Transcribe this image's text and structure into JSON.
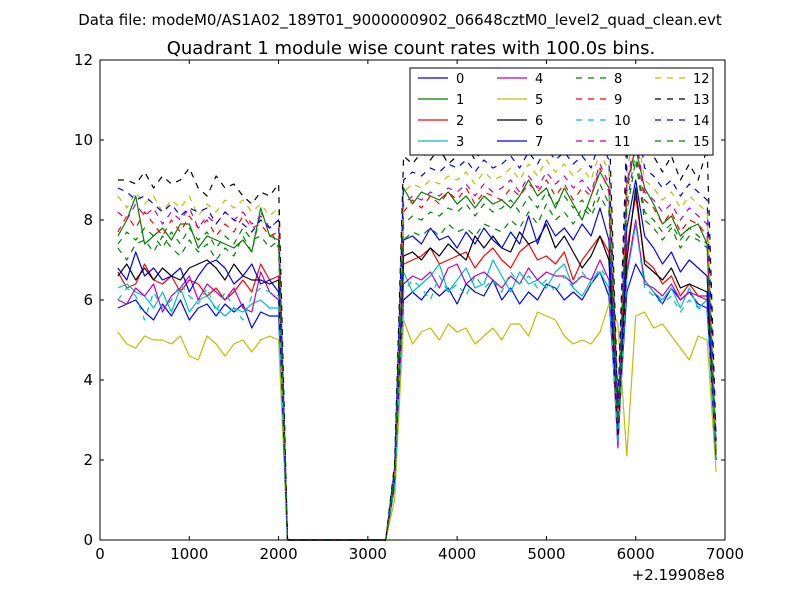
{
  "chart_data": {
    "type": "line",
    "suptitle": "Data file: modeM0/AS1A02_189T01_9000000902_06648cztM0_level2_quad_clean.evt",
    "title": "Quadrant 1 module wise count rates with 100.0s bins.",
    "xlabel": "",
    "ylabel": "",
    "xlim": [
      0,
      7000
    ],
    "ylim": [
      0,
      12
    ],
    "x_offset_label": "+2.19908e8",
    "xticks": [
      0,
      1000,
      2000,
      3000,
      4000,
      5000,
      6000,
      7000
    ],
    "yticks": [
      0,
      2,
      4,
      6,
      8,
      10,
      12
    ],
    "xtick_labels": [
      "0",
      "1000",
      "2000",
      "3000",
      "4000",
      "5000",
      "6000",
      "7000"
    ],
    "ytick_labels": [
      "0",
      "2",
      "4",
      "6",
      "8",
      "10",
      "12"
    ],
    "grid": false,
    "legend_position": "top-right",
    "x": [
      200,
      300,
      400,
      500,
      600,
      700,
      800,
      900,
      1000,
      1100,
      1200,
      1300,
      1400,
      1500,
      1600,
      1700,
      1800,
      1900,
      2000,
      2100,
      2200,
      2300,
      2400,
      2500,
      2600,
      2700,
      2800,
      2900,
      3000,
      3100,
      3200,
      3300,
      3400,
      3500,
      3600,
      3700,
      3800,
      3900,
      4000,
      4100,
      4200,
      4300,
      4400,
      4500,
      4600,
      4700,
      4800,
      4900,
      5000,
      5100,
      5200,
      5300,
      5400,
      5500,
      5600,
      5700,
      5800,
      5900,
      6000,
      6100,
      6200,
      6300,
      6400,
      6500,
      6600,
      6700,
      6800,
      6900
    ],
    "series": [
      {
        "name": "0",
        "color": "#0000ff",
        "dash": "solid",
        "values": [
          5.8,
          5.9,
          6.0,
          5.7,
          5.5,
          5.9,
          5.6,
          6.0,
          5.5,
          5.8,
          5.9,
          5.6,
          5.9,
          5.7,
          5.9,
          5.3,
          5.7,
          5.6,
          5.6,
          0.0,
          0.0,
          0.0,
          0.0,
          0.0,
          0.0,
          0.0,
          0.0,
          0.0,
          0.0,
          0.0,
          0.0,
          1.4,
          6.0,
          6.2,
          6.0,
          6.3,
          6.1,
          6.3,
          5.9,
          6.4,
          6.2,
          6.1,
          6.5,
          6.0,
          6.3,
          5.9,
          6.2,
          6.0,
          6.4,
          6.3,
          6.0,
          6.2,
          6.0,
          6.4,
          6.7,
          6.1,
          2.6,
          6.2,
          6.9,
          6.5,
          6.2,
          5.9,
          6.3,
          6.0,
          6.2,
          5.9,
          5.8,
          2.0
        ]
      },
      {
        "name": "1",
        "color": "#008000",
        "dash": "solid",
        "values": [
          7.6,
          8.0,
          8.6,
          7.4,
          7.6,
          7.8,
          7.5,
          7.9,
          7.9,
          7.3,
          7.6,
          7.5,
          7.4,
          7.3,
          7.5,
          7.2,
          8.3,
          7.6,
          7.5,
          0.0,
          0.0,
          0.0,
          0.0,
          0.0,
          0.0,
          0.0,
          0.0,
          0.0,
          0.0,
          0.0,
          0.0,
          1.5,
          8.8,
          8.4,
          8.7,
          8.6,
          8.5,
          8.7,
          8.4,
          8.6,
          8.3,
          8.6,
          8.4,
          8.5,
          8.3,
          8.6,
          9.0,
          8.6,
          8.8,
          8.3,
          8.8,
          8.4,
          8.0,
          8.6,
          9.2,
          8.8,
          2.9,
          8.9,
          9.8,
          8.8,
          8.4,
          7.9,
          8.1,
          7.6,
          7.8,
          7.9,
          7.4,
          2.0
        ]
      },
      {
        "name": "2",
        "color": "#ff0000",
        "dash": "solid",
        "values": [
          6.7,
          6.3,
          6.4,
          6.9,
          6.5,
          6.4,
          6.6,
          6.2,
          6.5,
          6.4,
          6.1,
          6.3,
          6.0,
          6.2,
          6.5,
          6.2,
          6.9,
          6.5,
          6.6,
          0.0,
          0.0,
          0.0,
          0.0,
          0.0,
          0.0,
          0.0,
          0.0,
          0.0,
          0.0,
          0.0,
          0.0,
          1.4,
          6.9,
          7.0,
          7.1,
          7.3,
          6.9,
          7.0,
          7.1,
          7.2,
          6.8,
          7.1,
          7.3,
          7.0,
          6.8,
          7.2,
          7.4,
          7.0,
          7.1,
          6.9,
          7.2,
          6.5,
          7.0,
          7.3,
          7.6,
          7.2,
          2.5,
          7.3,
          8.6,
          7.0,
          6.8,
          6.4,
          6.6,
          6.1,
          6.4,
          6.1,
          6.0,
          2.2
        ]
      },
      {
        "name": "3",
        "color": "#00bfbf",
        "dash": "solid",
        "values": [
          6.3,
          6.4,
          6.2,
          6.1,
          5.8,
          6.2,
          5.7,
          6.3,
          5.7,
          6.0,
          6.1,
          5.8,
          5.6,
          5.8,
          5.7,
          5.9,
          6.0,
          5.8,
          5.8,
          0.0,
          0.0,
          0.0,
          0.0,
          0.0,
          0.0,
          0.0,
          0.0,
          0.0,
          0.0,
          0.0,
          0.0,
          1.3,
          6.7,
          6.2,
          6.4,
          6.6,
          6.9,
          6.2,
          6.5,
          6.8,
          6.3,
          6.4,
          7.0,
          6.6,
          6.2,
          6.7,
          6.4,
          6.5,
          6.3,
          6.7,
          6.9,
          6.3,
          6.1,
          6.5,
          6.7,
          6.3,
          2.4,
          6.6,
          7.9,
          6.5,
          6.2,
          6.0,
          6.3,
          5.8,
          6.3,
          5.8,
          6.0,
          2.0
        ]
      },
      {
        "name": "4",
        "color": "#bf00bf",
        "dash": "solid",
        "values": [
          6.0,
          5.9,
          6.3,
          6.1,
          6.4,
          5.7,
          6.1,
          6.3,
          6.6,
          6.0,
          6.4,
          6.2,
          6.0,
          6.3,
          5.8,
          5.7,
          6.7,
          6.2,
          6.0,
          0.0,
          0.0,
          0.0,
          0.0,
          0.0,
          0.0,
          0.0,
          0.0,
          0.0,
          0.0,
          0.0,
          0.0,
          1.4,
          6.4,
          6.6,
          6.5,
          6.7,
          6.3,
          6.8,
          6.9,
          6.4,
          6.6,
          6.7,
          6.5,
          6.3,
          6.6,
          6.4,
          6.8,
          6.5,
          6.7,
          6.6,
          6.6,
          6.4,
          6.6,
          6.5,
          7.0,
          6.5,
          2.3,
          6.7,
          8.0,
          6.4,
          6.3,
          6.1,
          6.4,
          6.0,
          6.2,
          6.1,
          6.1,
          2.0
        ]
      },
      {
        "name": "5",
        "color": "#bfbf00",
        "dash": "solid",
        "values": [
          5.2,
          4.9,
          4.8,
          5.1,
          5.0,
          5.0,
          4.9,
          5.1,
          4.6,
          4.5,
          5.1,
          4.9,
          4.6,
          4.9,
          5.0,
          4.7,
          5.0,
          5.1,
          5.0,
          0.0,
          0.0,
          0.0,
          0.0,
          0.0,
          0.0,
          0.0,
          0.0,
          0.0,
          0.0,
          0.0,
          0.0,
          1.0,
          5.5,
          4.9,
          5.2,
          5.3,
          5.0,
          5.4,
          5.2,
          5.3,
          4.9,
          5.1,
          5.3,
          5.0,
          5.4,
          5.4,
          5.1,
          5.7,
          5.6,
          5.5,
          5.1,
          4.9,
          5.0,
          4.9,
          5.2,
          5.9,
          5.4,
          2.1,
          5.6,
          5.7,
          5.3,
          5.4,
          5.1,
          4.8,
          4.5,
          5.1,
          5.0,
          1.7
        ]
      },
      {
        "name": "6",
        "color": "#000000",
        "dash": "solid",
        "values": [
          6.6,
          6.9,
          6.5,
          6.8,
          6.5,
          6.8,
          6.6,
          6.5,
          6.8,
          6.9,
          7.0,
          6.8,
          6.5,
          6.9,
          6.6,
          6.5,
          6.5,
          6.4,
          6.5,
          0.0,
          0.0,
          0.0,
          0.0,
          0.0,
          0.0,
          0.0,
          0.0,
          0.0,
          0.0,
          0.0,
          0.0,
          1.5,
          7.1,
          7.2,
          7.0,
          7.3,
          7.1,
          7.4,
          7.2,
          7.0,
          7.6,
          7.3,
          7.6,
          7.3,
          7.2,
          7.7,
          7.4,
          7.5,
          7.9,
          7.3,
          7.6,
          7.2,
          6.8,
          7.1,
          7.6,
          7.0,
          2.6,
          7.0,
          8.8,
          6.9,
          6.7,
          6.5,
          6.8,
          6.3,
          6.4,
          6.3,
          6.2,
          2.0
        ]
      },
      {
        "name": "7",
        "color": "#0000ff",
        "dash": "solid",
        "values": [
          6.8,
          6.5,
          7.2,
          6.6,
          6.8,
          6.5,
          6.6,
          6.8,
          6.2,
          6.6,
          6.9,
          7.0,
          6.8,
          6.4,
          6.6,
          6.9,
          6.4,
          6.5,
          6.2,
          0.0,
          0.0,
          0.0,
          0.0,
          0.0,
          0.0,
          0.0,
          0.0,
          0.0,
          0.0,
          0.0,
          0.0,
          1.5,
          7.5,
          7.6,
          7.4,
          7.8,
          7.5,
          7.6,
          7.3,
          7.7,
          7.4,
          7.8,
          7.5,
          7.3,
          7.7,
          7.4,
          8.1,
          7.4,
          8.0,
          7.6,
          7.8,
          7.5,
          7.9,
          7.6,
          8.3,
          7.5,
          2.8,
          7.8,
          9.0,
          7.6,
          7.3,
          6.9,
          7.2,
          6.7,
          7.0,
          6.8,
          6.6,
          2.0
        ]
      },
      {
        "name": "8",
        "color": "#008000",
        "dash": "dashed",
        "values": [
          7.3,
          7.0,
          7.4,
          7.5,
          7.2,
          7.6,
          7.3,
          7.1,
          7.5,
          7.2,
          7.4,
          7.0,
          7.3,
          7.1,
          7.6,
          7.2,
          8.2,
          7.8,
          7.3,
          0.0,
          0.0,
          0.0,
          0.0,
          0.0,
          0.0,
          0.0,
          0.0,
          0.0,
          0.0,
          0.0,
          0.0,
          1.6,
          7.5,
          7.7,
          7.6,
          7.8,
          7.6,
          7.9,
          7.7,
          7.8,
          7.6,
          7.9,
          7.8,
          7.7,
          8.0,
          7.8,
          8.2,
          7.9,
          8.4,
          8.0,
          8.2,
          7.9,
          8.3,
          8.1,
          8.6,
          8.2,
          2.9,
          8.2,
          9.5,
          8.0,
          7.8,
          7.5,
          7.8,
          7.3,
          7.6,
          7.5,
          7.3,
          2.1
        ]
      },
      {
        "name": "9",
        "color": "#ff0000",
        "dash": "dashed",
        "values": [
          7.7,
          8.1,
          7.8,
          8.2,
          7.9,
          7.6,
          8.0,
          7.7,
          8.1,
          7.8,
          8.0,
          7.6,
          7.9,
          7.7,
          8.1,
          7.8,
          7.9,
          7.6,
          7.7,
          0.0,
          0.0,
          0.0,
          0.0,
          0.0,
          0.0,
          0.0,
          0.0,
          0.0,
          0.0,
          0.0,
          0.0,
          1.7,
          8.2,
          8.5,
          8.3,
          8.6,
          8.4,
          8.7,
          8.5,
          8.8,
          8.4,
          8.7,
          8.6,
          8.5,
          8.8,
          8.6,
          8.9,
          8.7,
          9.0,
          8.6,
          8.9,
          8.5,
          8.8,
          8.6,
          9.3,
          8.7,
          3.0,
          8.7,
          9.9,
          8.5,
          8.3,
          7.9,
          8.2,
          7.7,
          8.0,
          7.9,
          7.6,
          2.2
        ]
      },
      {
        "name": "10",
        "color": "#00bfbf",
        "dash": "dashed",
        "values": [
          6.0,
          6.3,
          6.1,
          5.5,
          6.2,
          5.8,
          6.0,
          6.4,
          6.1,
          5.9,
          6.3,
          5.7,
          6.2,
          5.8,
          5.5,
          6.1,
          6.3,
          6.2,
          6.1,
          0.0,
          0.0,
          0.0,
          0.0,
          0.0,
          0.0,
          0.0,
          0.0,
          0.0,
          0.0,
          0.0,
          0.0,
          1.3,
          6.2,
          6.5,
          6.3,
          6.0,
          6.6,
          6.2,
          6.4,
          6.1,
          6.6,
          6.3,
          6.5,
          6.2,
          6.7,
          6.4,
          6.6,
          6.3,
          6.5,
          6.2,
          6.6,
          6.3,
          6.7,
          6.4,
          6.8,
          6.5,
          2.4,
          6.6,
          7.9,
          6.3,
          6.1,
          5.9,
          6.1,
          5.7,
          6.0,
          5.8,
          5.7,
          2.0
        ]
      },
      {
        "name": "11",
        "color": "#bf00bf",
        "dash": "dashed",
        "values": [
          8.2,
          8.0,
          8.4,
          8.1,
          8.3,
          7.9,
          8.2,
          8.0,
          8.3,
          7.8,
          8.1,
          7.9,
          8.2,
          8.0,
          8.2,
          7.9,
          8.1,
          7.8,
          8.0,
          0.0,
          0.0,
          0.0,
          0.0,
          0.0,
          0.0,
          0.0,
          0.0,
          0.0,
          0.0,
          0.0,
          0.0,
          1.7,
          8.4,
          8.6,
          8.5,
          8.7,
          8.6,
          8.8,
          8.7,
          8.9,
          8.6,
          8.9,
          8.7,
          8.8,
          9.0,
          8.7,
          9.1,
          8.8,
          9.2,
          8.9,
          9.1,
          8.8,
          9.0,
          8.7,
          9.4,
          8.9,
          3.1,
          8.9,
          10.1,
          8.7,
          8.5,
          8.2,
          8.4,
          8.0,
          8.3,
          8.1,
          7.9,
          2.3
        ]
      },
      {
        "name": "12",
        "color": "#bfbf00",
        "dash": "dashed",
        "values": [
          8.6,
          8.3,
          8.7,
          8.4,
          8.6,
          8.2,
          8.5,
          8.3,
          8.6,
          8.1,
          8.4,
          8.2,
          8.5,
          8.3,
          8.5,
          8.2,
          8.4,
          8.1,
          8.3,
          0.0,
          0.0,
          0.0,
          0.0,
          0.0,
          0.0,
          0.0,
          0.0,
          0.0,
          0.0,
          0.0,
          0.0,
          1.8,
          8.7,
          8.9,
          8.8,
          9.0,
          8.9,
          9.1,
          9.0,
          9.2,
          8.9,
          9.2,
          9.0,
          9.1,
          9.3,
          9.0,
          9.4,
          9.1,
          9.5,
          9.2,
          9.4,
          9.1,
          9.3,
          9.0,
          9.7,
          9.2,
          3.2,
          9.2,
          10.4,
          9.0,
          8.8,
          8.5,
          8.7,
          8.3,
          8.6,
          8.4,
          8.2,
          2.4
        ]
      },
      {
        "name": "13",
        "color": "#000000",
        "dash": "dashed",
        "values": [
          9.0,
          9.0,
          8.9,
          9.2,
          8.8,
          9.1,
          8.9,
          9.0,
          9.3,
          8.8,
          8.6,
          9.1,
          8.8,
          8.9,
          8.6,
          8.4,
          8.7,
          8.6,
          8.9,
          0.0,
          0.0,
          0.0,
          0.0,
          0.0,
          0.0,
          0.0,
          0.0,
          0.0,
          0.0,
          0.0,
          0.0,
          1.9,
          9.6,
          9.4,
          9.7,
          9.5,
          9.8,
          9.4,
          9.6,
          9.9,
          9.5,
          9.8,
          9.6,
          9.9,
          9.7,
          10.0,
          9.8,
          10.1,
          9.7,
          10.2,
          9.8,
          10.0,
          9.7,
          10.3,
          9.8,
          10.6,
          3.4,
          10.2,
          11.0,
          10.0,
          9.6,
          9.2,
          9.6,
          9.0,
          9.4,
          9.0,
          9.8,
          2.5
        ]
      },
      {
        "name": "14",
        "color": "#0000ff",
        "dash": "dashed",
        "values": [
          8.8,
          8.7,
          8.5,
          8.6,
          8.4,
          8.2,
          8.4,
          8.1,
          8.3,
          8.2,
          8.3,
          7.9,
          8.2,
          8.0,
          7.9,
          7.7,
          8.0,
          7.8,
          8.0,
          0.0,
          0.0,
          0.0,
          0.0,
          0.0,
          0.0,
          0.0,
          0.0,
          0.0,
          0.0,
          0.0,
          0.0,
          1.8,
          9.0,
          9.2,
          9.1,
          9.3,
          9.2,
          9.4,
          9.3,
          9.5,
          9.2,
          9.5,
          9.3,
          9.4,
          9.6,
          9.3,
          9.7,
          9.4,
          9.8,
          9.5,
          9.7,
          9.4,
          9.6,
          9.3,
          10.0,
          9.5,
          3.3,
          9.5,
          10.8,
          9.3,
          9.1,
          8.8,
          9.0,
          8.6,
          8.9,
          8.7,
          8.5,
          2.4
        ]
      },
      {
        "name": "15",
        "color": "#008000",
        "dash": "dashed",
        "values": [
          7.4,
          7.7,
          7.5,
          7.8,
          7.6,
          7.3,
          7.7,
          7.4,
          7.8,
          7.5,
          7.7,
          7.3,
          7.6,
          7.4,
          7.8,
          7.5,
          7.6,
          7.3,
          7.5,
          0.0,
          0.0,
          0.0,
          0.0,
          0.0,
          0.0,
          0.0,
          0.0,
          0.0,
          0.0,
          0.0,
          0.0,
          1.6,
          7.9,
          8.1,
          8.0,
          8.2,
          8.1,
          8.3,
          8.2,
          8.4,
          8.1,
          8.4,
          8.2,
          8.3,
          8.5,
          8.2,
          8.6,
          8.3,
          8.7,
          8.4,
          8.6,
          8.3,
          8.5,
          8.2,
          8.9,
          8.4,
          3.0,
          8.4,
          9.7,
          8.2,
          8.0,
          7.7,
          7.9,
          7.5,
          7.8,
          7.6,
          7.4,
          2.2
        ]
      }
    ]
  }
}
